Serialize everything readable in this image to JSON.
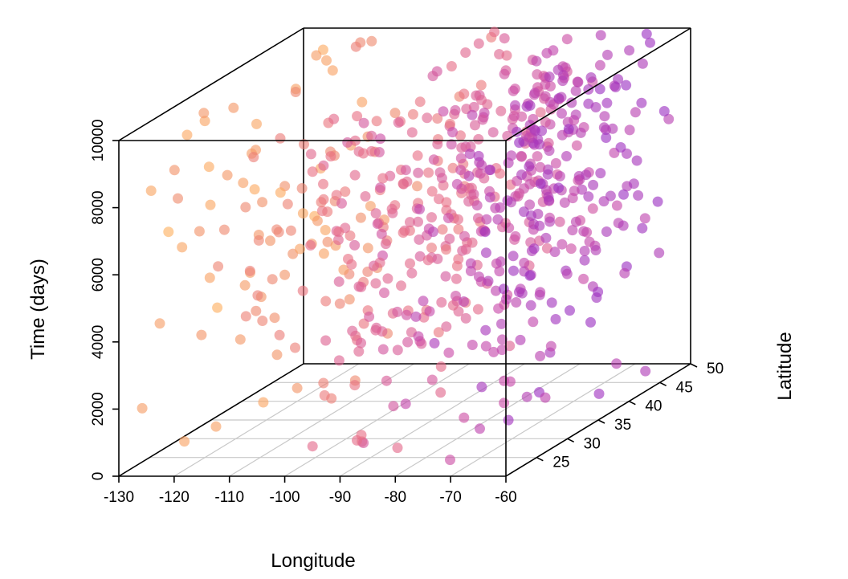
{
  "chart_data": {
    "type": "scatter3d",
    "title": "",
    "xlabel": "Longitude",
    "ylabel": "Latitude",
    "zlabel": "Time (days)",
    "xlim": [
      -130,
      -60
    ],
    "ylim": [
      20,
      50
    ],
    "zlim": [
      0,
      10000
    ],
    "x_ticks": [
      "-130",
      "-120",
      "-110",
      "-100",
      "-90",
      "-80",
      "-70",
      "-60"
    ],
    "y_ticks": [
      "25",
      "30",
      "35",
      "40",
      "45",
      "50"
    ],
    "z_ticks": [
      "0",
      "2000",
      "4000",
      "6000",
      "8000",
      "10000"
    ],
    "floor_grid": true,
    "color_scale": [
      "#ffb25e",
      "#f08f6a",
      "#e86f86",
      "#c94aa8",
      "#9b30c2"
    ],
    "color_variable": "longitude",
    "point_opacity": 0.62,
    "point_count": 650,
    "sample_points": [
      {
        "x": -128,
        "y": 22,
        "z": 1800
      },
      {
        "x": -126,
        "y": 38,
        "z": 7600
      },
      {
        "x": -122,
        "y": 46,
        "z": 9800
      },
      {
        "x": -110,
        "y": 30,
        "z": 6200
      },
      {
        "x": -100,
        "y": 42,
        "z": 8700
      },
      {
        "x": -95,
        "y": 27,
        "z": 3400
      },
      {
        "x": -90,
        "y": 33,
        "z": 5100
      },
      {
        "x": -87,
        "y": 44,
        "z": 9300
      },
      {
        "x": -84,
        "y": 36,
        "z": 6800
      },
      {
        "x": -82,
        "y": 40,
        "z": 7900
      },
      {
        "x": -80,
        "y": 26,
        "z": 2200
      },
      {
        "x": -76,
        "y": 39,
        "z": 8200
      },
      {
        "x": -73,
        "y": 41,
        "z": 9600
      },
      {
        "x": -71,
        "y": 43,
        "z": 4700
      },
      {
        "x": -68,
        "y": 45,
        "z": 8800
      },
      {
        "x": -64,
        "y": 47,
        "z": 9900
      }
    ]
  }
}
